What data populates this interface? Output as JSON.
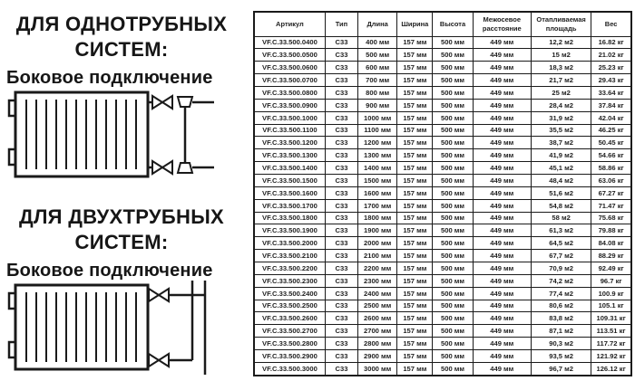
{
  "left_panel": {
    "section_one_pipe": {
      "title_line1": "ДЛЯ ОДНОТРУБНЫХ",
      "title_line2": "СИСТЕМ:",
      "subtitle": "Боковое подключение"
    },
    "section_two_pipe": {
      "title_line1": "ДЛЯ ДВУХТРУБНЫХ",
      "title_line2": "СИСТЕМ:",
      "subtitle": "Боковое подключение"
    }
  },
  "table": {
    "headers": [
      "Артикул",
      "Тип",
      "Длина",
      "Ширина",
      "Высота",
      "Межосевое расстояние",
      "Отапливаемая площадь",
      "Вес"
    ],
    "column_keys": [
      "article",
      "type",
      "length",
      "width",
      "height",
      "axial-distance",
      "heated-area",
      "weight"
    ],
    "rows": [
      [
        "VF.C.33.500.0400",
        "C33",
        "400 мм",
        "157 мм",
        "500 мм",
        "449 мм",
        "12,2 м2",
        "16.82 кг"
      ],
      [
        "VF.C.33.500.0500",
        "C33",
        "500 мм",
        "157 мм",
        "500 мм",
        "449 мм",
        "15 м2",
        "21.02 кг"
      ],
      [
        "VF.C.33.500.0600",
        "C33",
        "600 мм",
        "157 мм",
        "500 мм",
        "449 мм",
        "18,3 м2",
        "25.23 кг"
      ],
      [
        "VF.C.33.500.0700",
        "C33",
        "700 мм",
        "157 мм",
        "500 мм",
        "449 мм",
        "21,7 м2",
        "29.43 кг"
      ],
      [
        "VF.C.33.500.0800",
        "C33",
        "800 мм",
        "157 мм",
        "500 мм",
        "449 мм",
        "25 м2",
        "33.64 кг"
      ],
      [
        "VF.C.33.500.0900",
        "C33",
        "900 мм",
        "157 мм",
        "500 мм",
        "449 мм",
        "28,4 м2",
        "37.84 кг"
      ],
      [
        "VF.C.33.500.1000",
        "C33",
        "1000 мм",
        "157 мм",
        "500 мм",
        "449 мм",
        "31,9 м2",
        "42.04 кг"
      ],
      [
        "VF.C.33.500.1100",
        "C33",
        "1100 мм",
        "157 мм",
        "500 мм",
        "449 мм",
        "35,5 м2",
        "46.25 кг"
      ],
      [
        "VF.C.33.500.1200",
        "C33",
        "1200 мм",
        "157 мм",
        "500 мм",
        "449 мм",
        "38,7 м2",
        "50.45 кг"
      ],
      [
        "VF.C.33.500.1300",
        "C33",
        "1300 мм",
        "157 мм",
        "500 мм",
        "449 мм",
        "41,9 м2",
        "54.66 кг"
      ],
      [
        "VF.C.33.500.1400",
        "C33",
        "1400 мм",
        "157 мм",
        "500 мм",
        "449 мм",
        "45,1 м2",
        "58.86 кг"
      ],
      [
        "VF.C.33.500.1500",
        "C33",
        "1500 мм",
        "157 мм",
        "500 мм",
        "449 мм",
        "48,4 м2",
        "63.06 кг"
      ],
      [
        "VF.C.33.500.1600",
        "C33",
        "1600 мм",
        "157 мм",
        "500 мм",
        "449 мм",
        "51,6 м2",
        "67.27 кг"
      ],
      [
        "VF.C.33.500.1700",
        "C33",
        "1700 мм",
        "157 мм",
        "500 мм",
        "449 мм",
        "54,8 м2",
        "71.47 кг"
      ],
      [
        "VF.C.33.500.1800",
        "C33",
        "1800 мм",
        "157 мм",
        "500 мм",
        "449 мм",
        "58 м2",
        "75.68 кг"
      ],
      [
        "VF.C.33.500.1900",
        "C33",
        "1900 мм",
        "157 мм",
        "500 мм",
        "449 мм",
        "61,3 м2",
        "79.88 кг"
      ],
      [
        "VF.C.33.500.2000",
        "C33",
        "2000 мм",
        "157 мм",
        "500 мм",
        "449 мм",
        "64,5 м2",
        "84.08 кг"
      ],
      [
        "VF.C.33.500.2100",
        "C33",
        "2100 мм",
        "157 мм",
        "500 мм",
        "449 мм",
        "67,7 м2",
        "88.29 кг"
      ],
      [
        "VF.C.33.500.2200",
        "C33",
        "2200 мм",
        "157 мм",
        "500 мм",
        "449 мм",
        "70,9 м2",
        "92.49 кг"
      ],
      [
        "VF.C.33.500.2300",
        "C33",
        "2300 мм",
        "157 мм",
        "500 мм",
        "449 мм",
        "74,2 м2",
        "96.7 кг"
      ],
      [
        "VF.C.33.500.2400",
        "C33",
        "2400 мм",
        "157 мм",
        "500 мм",
        "449 мм",
        "77,4 м2",
        "100.9 кг"
      ],
      [
        "VF.C.33.500.2500",
        "C33",
        "2500 мм",
        "157 мм",
        "500 мм",
        "449 мм",
        "80,6 м2",
        "105.1 кг"
      ],
      [
        "VF.C.33.500.2600",
        "C33",
        "2600 мм",
        "157 мм",
        "500 мм",
        "449 мм",
        "83,8 м2",
        "109.31 кг"
      ],
      [
        "VF.C.33.500.2700",
        "C33",
        "2700 мм",
        "157 мм",
        "500 мм",
        "449 мм",
        "87,1 м2",
        "113.51 кг"
      ],
      [
        "VF.C.33.500.2800",
        "C33",
        "2800 мм",
        "157 мм",
        "500 мм",
        "449 мм",
        "90,3 м2",
        "117.72 кг"
      ],
      [
        "VF.C.33.500.2900",
        "C33",
        "2900 мм",
        "157 мм",
        "500 мм",
        "449 мм",
        "93,5 м2",
        "121.92 кг"
      ],
      [
        "VF.C.33.500.3000",
        "C33",
        "3000 мм",
        "157 мм",
        "500 мм",
        "449 мм",
        "96,7 м2",
        "126.12 кг"
      ]
    ]
  },
  "colors": {
    "text": "#1a1a1a",
    "border": "#1a1a1a",
    "background": "#ffffff"
  }
}
